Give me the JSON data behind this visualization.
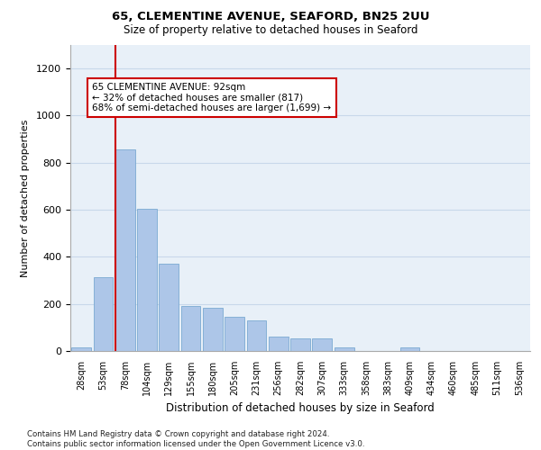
{
  "title_line1": "65, CLEMENTINE AVENUE, SEAFORD, BN25 2UU",
  "title_line2": "Size of property relative to detached houses in Seaford",
  "xlabel": "Distribution of detached houses by size in Seaford",
  "ylabel": "Number of detached properties",
  "bar_labels": [
    "28sqm",
    "53sqm",
    "78sqm",
    "104sqm",
    "129sqm",
    "155sqm",
    "180sqm",
    "205sqm",
    "231sqm",
    "256sqm",
    "282sqm",
    "307sqm",
    "333sqm",
    "358sqm",
    "383sqm",
    "409sqm",
    "434sqm",
    "460sqm",
    "485sqm",
    "511sqm",
    "536sqm"
  ],
  "bar_values": [
    15,
    315,
    855,
    605,
    370,
    190,
    185,
    145,
    130,
    60,
    55,
    55,
    15,
    0,
    0,
    15,
    0,
    0,
    0,
    0,
    0
  ],
  "bar_color": "#adc6e8",
  "bar_edge_color": "#6aa0cc",
  "grid_color": "#c8d8ea",
  "background_color": "#e8f0f8",
  "vline_color": "#cc0000",
  "vline_pos": 1.55,
  "annotation_text": "65 CLEMENTINE AVENUE: 92sqm\n← 32% of detached houses are smaller (817)\n68% of semi-detached houses are larger (1,699) →",
  "annotation_box_color": "#ffffff",
  "annotation_box_edge": "#cc0000",
  "ylim": [
    0,
    1300
  ],
  "yticks": [
    0,
    200,
    400,
    600,
    800,
    1000,
    1200
  ],
  "footnote": "Contains HM Land Registry data © Crown copyright and database right 2024.\nContains public sector information licensed under the Open Government Licence v3.0."
}
